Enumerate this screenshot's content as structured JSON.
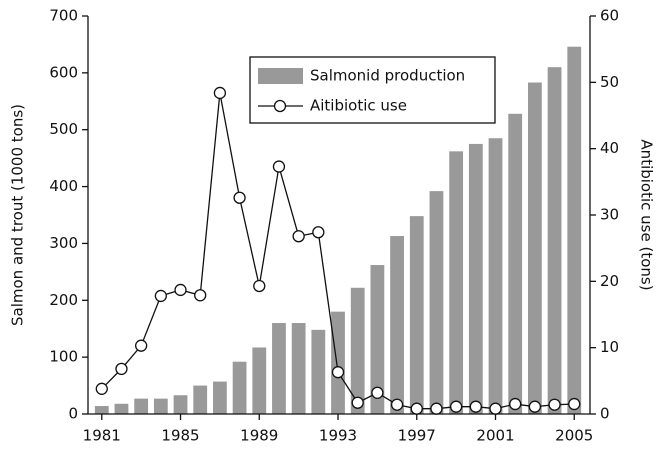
{
  "chart_data": {
    "type": "bar_line",
    "y_label": "Salmon and trout (1000 tons)",
    "y2_label": "Antibiotic use (tons)",
    "x": [
      1981,
      1982,
      1983,
      1984,
      1985,
      1986,
      1987,
      1988,
      1989,
      1990,
      1991,
      1992,
      1993,
      1994,
      1995,
      1996,
      1997,
      1998,
      1999,
      2000,
      2001,
      2002,
      2003,
      2004,
      2005
    ],
    "xlim": [
      1980.3,
      2005.8
    ],
    "xticks": [
      1981,
      1985,
      1989,
      1993,
      1997,
      2001,
      2005
    ],
    "ylim": [
      0,
      700
    ],
    "yticks": [
      0,
      100,
      200,
      300,
      400,
      500,
      600,
      700
    ],
    "y2lim": [
      0,
      60
    ],
    "y2ticks": [
      0,
      10,
      20,
      30,
      40,
      50,
      60
    ],
    "legend": "top",
    "series": [
      {
        "name": "Salmonid production",
        "type": "bar",
        "color": "#999999",
        "values": [
          14,
          18,
          27,
          27,
          33,
          50,
          57,
          92,
          117,
          160,
          160,
          148,
          180,
          222,
          262,
          313,
          348,
          392,
          462,
          475,
          485,
          528,
          583,
          610,
          646
        ]
      },
      {
        "name": "Aitibiotic use",
        "type": "line",
        "color": "#111111",
        "axis": "y2",
        "values": [
          3.8,
          6.8,
          10.3,
          17.8,
          18.7,
          17.9,
          48.4,
          32.6,
          19.3,
          37.3,
          26.8,
          27.4,
          6.3,
          1.7,
          3.2,
          1.4,
          0.8,
          0.8,
          1.1,
          1.1,
          0.8,
          1.5,
          1.1,
          1.4,
          1.5
        ]
      }
    ]
  }
}
